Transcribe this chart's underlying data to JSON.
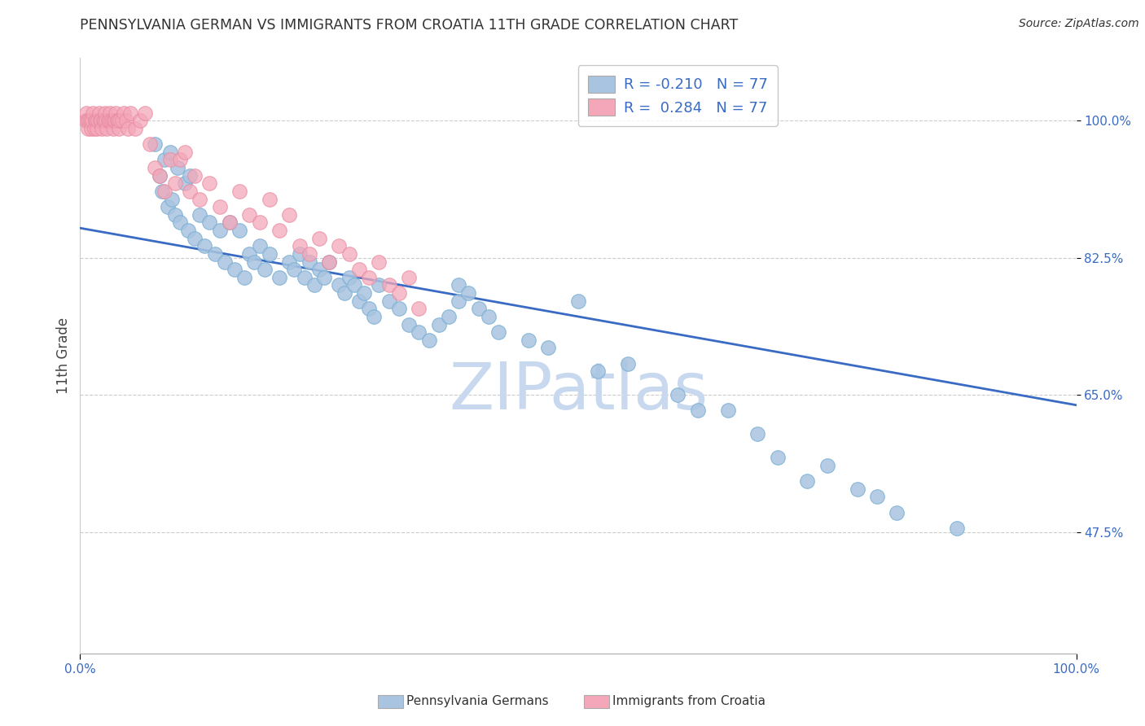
{
  "title": "PENNSYLVANIA GERMAN VS IMMIGRANTS FROM CROATIA 11TH GRADE CORRELATION CHART",
  "source": "Source: ZipAtlas.com",
  "ylabel": "11th Grade",
  "xlim": [
    0.0,
    1.0
  ],
  "ylim": [
    0.32,
    1.08
  ],
  "yticks": [
    0.475,
    0.65,
    0.825,
    1.0
  ],
  "ytick_labels": [
    "47.5%",
    "65.0%",
    "82.5%",
    "100.0%"
  ],
  "r_blue": -0.21,
  "r_pink": 0.284,
  "n": 77,
  "color_blue": "#a8c4e0",
  "color_blue_edge": "#7aafd4",
  "color_pink": "#f4a7b9",
  "color_pink_edge": "#e88aa0",
  "trendline_color": "#3a6bc4",
  "watermark_color": "#c8d8ee",
  "legend_label_blue": "Pennsylvania Germans",
  "legend_label_pink": "Immigrants from Croatia",
  "trendline_x0": 0.0,
  "trendline_y0": 0.863,
  "trendline_x1": 1.0,
  "trendline_y1": 0.637,
  "background_color": "#ffffff",
  "grid_color": "#cccccc",
  "blue_x": [
    0.075,
    0.08,
    0.082,
    0.085,
    0.088,
    0.09,
    0.092,
    0.095,
    0.098,
    0.1,
    0.105,
    0.108,
    0.11,
    0.115,
    0.12,
    0.125,
    0.13,
    0.135,
    0.14,
    0.145,
    0.15,
    0.155,
    0.16,
    0.165,
    0.17,
    0.175,
    0.18,
    0.185,
    0.19,
    0.2,
    0.21,
    0.215,
    0.22,
    0.225,
    0.23,
    0.235,
    0.24,
    0.245,
    0.25,
    0.26,
    0.265,
    0.27,
    0.275,
    0.28,
    0.285,
    0.29,
    0.295,
    0.3,
    0.31,
    0.32,
    0.33,
    0.34,
    0.35,
    0.36,
    0.37,
    0.38,
    0.38,
    0.39,
    0.4,
    0.41,
    0.42,
    0.45,
    0.47,
    0.5,
    0.52,
    0.55,
    0.6,
    0.62,
    0.65,
    0.68,
    0.7,
    0.73,
    0.75,
    0.78,
    0.8,
    0.82,
    0.88
  ],
  "blue_y": [
    0.97,
    0.93,
    0.91,
    0.95,
    0.89,
    0.96,
    0.9,
    0.88,
    0.94,
    0.87,
    0.92,
    0.86,
    0.93,
    0.85,
    0.88,
    0.84,
    0.87,
    0.83,
    0.86,
    0.82,
    0.87,
    0.81,
    0.86,
    0.8,
    0.83,
    0.82,
    0.84,
    0.81,
    0.83,
    0.8,
    0.82,
    0.81,
    0.83,
    0.8,
    0.82,
    0.79,
    0.81,
    0.8,
    0.82,
    0.79,
    0.78,
    0.8,
    0.79,
    0.77,
    0.78,
    0.76,
    0.75,
    0.79,
    0.77,
    0.76,
    0.74,
    0.73,
    0.72,
    0.74,
    0.75,
    0.79,
    0.77,
    0.78,
    0.76,
    0.75,
    0.73,
    0.72,
    0.71,
    0.77,
    0.68,
    0.69,
    0.65,
    0.63,
    0.63,
    0.6,
    0.57,
    0.54,
    0.56,
    0.53,
    0.52,
    0.5,
    0.48
  ],
  "pink_x": [
    0.005,
    0.006,
    0.007,
    0.008,
    0.009,
    0.01,
    0.011,
    0.012,
    0.013,
    0.014,
    0.015,
    0.016,
    0.017,
    0.018,
    0.019,
    0.02,
    0.021,
    0.022,
    0.023,
    0.024,
    0.025,
    0.026,
    0.027,
    0.028,
    0.029,
    0.03,
    0.031,
    0.032,
    0.033,
    0.034,
    0.035,
    0.036,
    0.037,
    0.038,
    0.039,
    0.04,
    0.042,
    0.044,
    0.046,
    0.048,
    0.05,
    0.055,
    0.06,
    0.065,
    0.07,
    0.075,
    0.08,
    0.085,
    0.09,
    0.095,
    0.1,
    0.105,
    0.11,
    0.115,
    0.12,
    0.13,
    0.14,
    0.15,
    0.16,
    0.17,
    0.18,
    0.19,
    0.2,
    0.21,
    0.22,
    0.23,
    0.24,
    0.25,
    0.26,
    0.27,
    0.28,
    0.29,
    0.3,
    0.31,
    0.32,
    0.33,
    0.34
  ],
  "pink_y": [
    1.0,
    1.01,
    1.0,
    0.99,
    1.0,
    1.0,
    0.99,
    1.0,
    1.01,
    0.99,
    1.0,
    1.0,
    0.99,
    1.0,
    1.01,
    1.0,
    1.0,
    0.99,
    1.0,
    1.0,
    1.01,
    1.0,
    0.99,
    1.0,
    1.0,
    1.01,
    1.0,
    1.0,
    0.99,
    1.0,
    1.0,
    1.01,
    1.0,
    1.0,
    0.99,
    1.0,
    1.0,
    1.01,
    1.0,
    0.99,
    1.01,
    0.99,
    1.0,
    1.01,
    0.97,
    0.94,
    0.93,
    0.91,
    0.95,
    0.92,
    0.95,
    0.96,
    0.91,
    0.93,
    0.9,
    0.92,
    0.89,
    0.87,
    0.91,
    0.88,
    0.87,
    0.9,
    0.86,
    0.88,
    0.84,
    0.83,
    0.85,
    0.82,
    0.84,
    0.83,
    0.81,
    0.8,
    0.82,
    0.79,
    0.78,
    0.8,
    0.76
  ]
}
